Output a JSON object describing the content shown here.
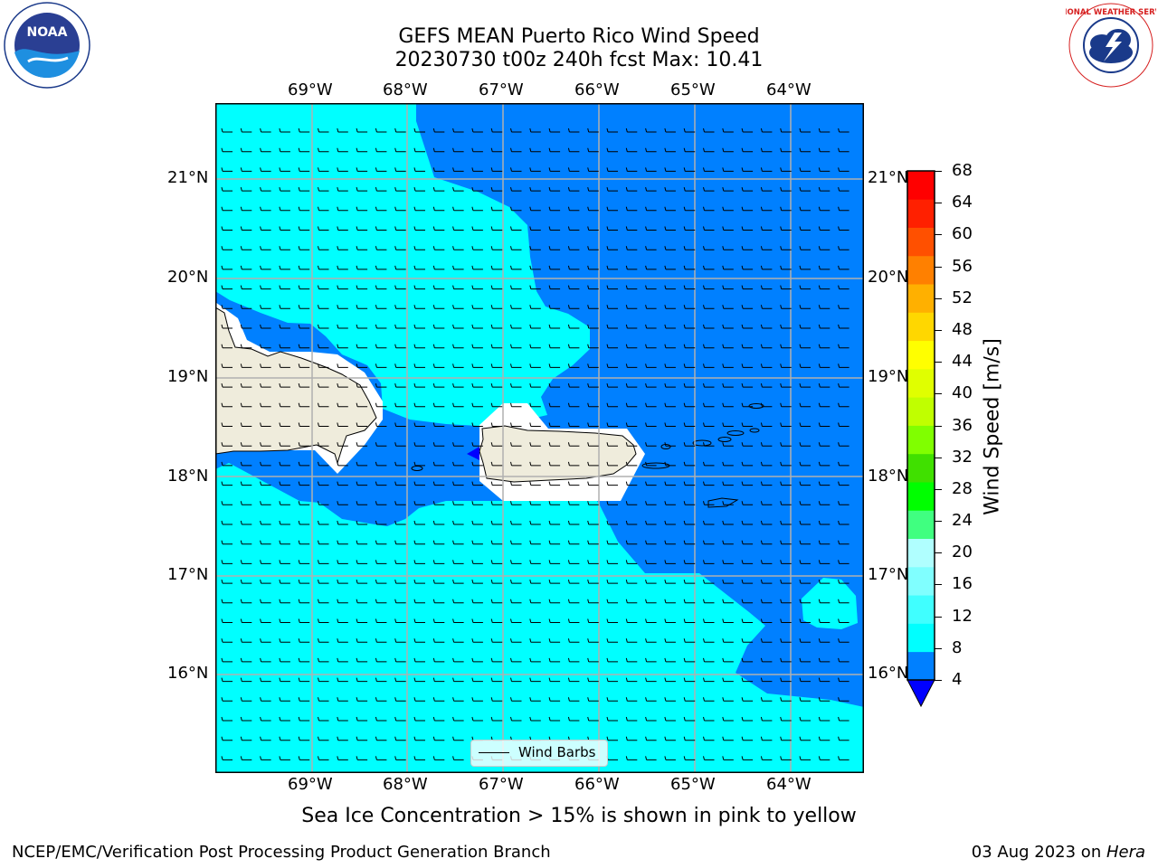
{
  "header": {
    "title_line1": "GEFS MEAN Puerto Rico Wind Speed",
    "title_line2": "20230730 t00z 240h fcst   Max: 10.41"
  },
  "logos": {
    "noaa_text": "NOAA",
    "nws_text": "NATIONAL WEATHER SERVICE"
  },
  "map": {
    "lon_labels": [
      "69°W",
      "68°W",
      "67°W",
      "66°W",
      "65°W",
      "64°W"
    ],
    "lat_labels": [
      "21°N",
      "20°N",
      "19°N",
      "18°N",
      "17°N",
      "16°N"
    ],
    "field_colors": {
      "light": "#00ffff",
      "medium": "#0080ff",
      "land": "#efecdc",
      "white": "#ffffff",
      "deep": "#0000ff"
    },
    "wind_direction": "from east",
    "legend_label": "Wind Barbs"
  },
  "colorbar": {
    "label": "Wind Speed [m/s]",
    "ticks": [
      "4",
      "8",
      "12",
      "16",
      "20",
      "24",
      "28",
      "32",
      "36",
      "40",
      "44",
      "48",
      "52",
      "56",
      "60",
      "64",
      "68"
    ],
    "colors": [
      "#0080ff",
      "#00ffff",
      "#40ffff",
      "#80ffff",
      "#b0ffff",
      "#40ff80",
      "#00ff00",
      "#40e000",
      "#80ff00",
      "#c0ff00",
      "#e0ff00",
      "#ffff00",
      "#ffd700",
      "#ffb000",
      "#ff8000",
      "#ff5000",
      "#ff2000",
      "#ff0000"
    ],
    "min_color": "#0000ff"
  },
  "notes": {
    "sea_ice": "Sea Ice Concentration > 15% is shown in pink to yellow",
    "branch": "NCEP/EMC/Verification Post Processing Product Generation Branch",
    "date_prefix": "03 Aug 2023 on ",
    "machine": "Hera"
  }
}
